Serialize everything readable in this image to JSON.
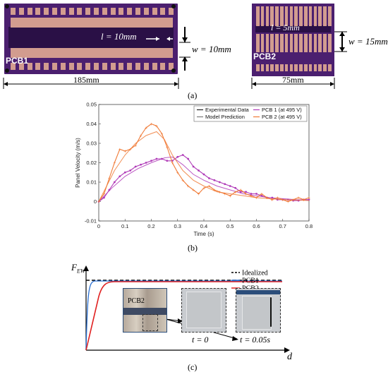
{
  "panel_a": {
    "pcb1_label": "PCB1",
    "pcb2_label": "PCB2",
    "pcb1_l_label": "l = 10mm",
    "pcb1_w_label": "w = 10mm",
    "pcb1_width_label": "185mm",
    "pcb2_l_label": "l = 5mm",
    "pcb2_w_label": "w = 15mm",
    "pcb2_width_label": "75mm",
    "caption": "(a)"
  },
  "panel_b": {
    "caption": "(b)",
    "colors": {
      "experimental": "#222222",
      "model": "#777777",
      "pcb1": "#b03bb8",
      "pcb2": "#f07a36"
    }
  },
  "chart_data": {
    "type": "line",
    "xlabel": "Time (s)",
    "ylabel": "Panel Velocity (m/s)",
    "xlim": [
      0,
      0.8
    ],
    "ylim": [
      -0.01,
      0.05
    ],
    "xticks": [
      "0",
      "0.1",
      "0.2",
      "0.3",
      "0.4",
      "0.5",
      "0.6",
      "0.7",
      "0.8"
    ],
    "yticks": [
      "-0.01",
      "0",
      "0.01",
      "0.02",
      "0.03",
      "0.04",
      "0.05"
    ],
    "legend": [
      "Experimental Data",
      "Model Prediction",
      "PCB 1 (at 495 V)",
      "PCB 2 (at 495 V)"
    ],
    "legend_position": "top-right",
    "series": [
      {
        "name": "PCB 1 (at 495 V)",
        "kind": "experimental",
        "x": [
          0,
          0.02,
          0.04,
          0.06,
          0.08,
          0.1,
          0.12,
          0.14,
          0.16,
          0.18,
          0.2,
          0.22,
          0.24,
          0.26,
          0.28,
          0.3,
          0.32,
          0.34,
          0.36,
          0.38,
          0.4,
          0.42,
          0.44,
          0.46,
          0.48,
          0.5,
          0.52,
          0.54,
          0.56,
          0.58,
          0.6,
          0.62,
          0.64,
          0.66,
          0.68,
          0.7,
          0.72,
          0.74,
          0.76,
          0.78,
          0.8
        ],
        "y": [
          0.0,
          0.002,
          0.006,
          0.01,
          0.013,
          0.015,
          0.016,
          0.018,
          0.019,
          0.02,
          0.021,
          0.022,
          0.022,
          0.021,
          0.021,
          0.023,
          0.024,
          0.022,
          0.018,
          0.016,
          0.014,
          0.012,
          0.011,
          0.01,
          0.009,
          0.008,
          0.007,
          0.005,
          0.005,
          0.004,
          0.004,
          0.003,
          0.002,
          0.002,
          0.001,
          0.001,
          0.001,
          0.0005,
          0.0005,
          0.001,
          0.001
        ]
      },
      {
        "name": "PCB 1 (at 495 V)",
        "kind": "model",
        "x": [
          0,
          0.05,
          0.1,
          0.15,
          0.2,
          0.25,
          0.28,
          0.32,
          0.36,
          0.4,
          0.45,
          0.5,
          0.55,
          0.6,
          0.65,
          0.7,
          0.75,
          0.8
        ],
        "y": [
          0,
          0.007,
          0.013,
          0.017,
          0.02,
          0.0225,
          0.023,
          0.019,
          0.014,
          0.011,
          0.008,
          0.006,
          0.004,
          0.003,
          0.002,
          0.0015,
          0.001,
          0.0008
        ]
      },
      {
        "name": "PCB 2 (at 495 V)",
        "kind": "experimental",
        "x": [
          0,
          0.02,
          0.04,
          0.06,
          0.08,
          0.1,
          0.12,
          0.14,
          0.16,
          0.18,
          0.2,
          0.22,
          0.24,
          0.26,
          0.28,
          0.3,
          0.32,
          0.34,
          0.36,
          0.38,
          0.4,
          0.42,
          0.44,
          0.46,
          0.48,
          0.5,
          0.52,
          0.54,
          0.56,
          0.58,
          0.6,
          0.62,
          0.64,
          0.66,
          0.68,
          0.7,
          0.72,
          0.74,
          0.76,
          0.78,
          0.8
        ],
        "y": [
          0.0,
          0.004,
          0.012,
          0.02,
          0.027,
          0.026,
          0.027,
          0.029,
          0.034,
          0.038,
          0.04,
          0.039,
          0.035,
          0.028,
          0.02,
          0.015,
          0.011,
          0.008,
          0.006,
          0.004,
          0.007,
          0.008,
          0.006,
          0.005,
          0.004,
          0.003,
          0.005,
          0.006,
          0.004,
          0.003,
          0.002,
          0.004,
          0.002,
          0.001,
          0.002,
          0.001,
          0.0,
          0.001,
          0.002,
          0.001,
          0.002
        ]
      },
      {
        "name": "PCB 2 (at 495 V)",
        "kind": "model",
        "x": [
          0,
          0.03,
          0.06,
          0.1,
          0.14,
          0.18,
          0.22,
          0.25,
          0.28,
          0.32,
          0.36,
          0.4,
          0.45,
          0.5,
          0.55,
          0.6,
          0.65,
          0.7,
          0.75,
          0.8
        ],
        "y": [
          0,
          0.008,
          0.016,
          0.024,
          0.03,
          0.034,
          0.036,
          0.032,
          0.024,
          0.016,
          0.011,
          0.008,
          0.005,
          0.004,
          0.003,
          0.002,
          0.0015,
          0.001,
          0.0008,
          0.0005
        ]
      }
    ]
  },
  "panel_c": {
    "caption": "(c)",
    "y_axis_label": "F",
    "y_axis_sub": "EW",
    "x_axis_label": "d",
    "legend": [
      "Idealized",
      "PCB1",
      "PCB2"
    ],
    "colors": {
      "idealized": "#000000",
      "pcb1": "#2a6fd1",
      "pcb2": "#e02020"
    },
    "photo_label": "PCB2",
    "t0_label": "t = 0",
    "t1_label": "t = 0.05s"
  }
}
